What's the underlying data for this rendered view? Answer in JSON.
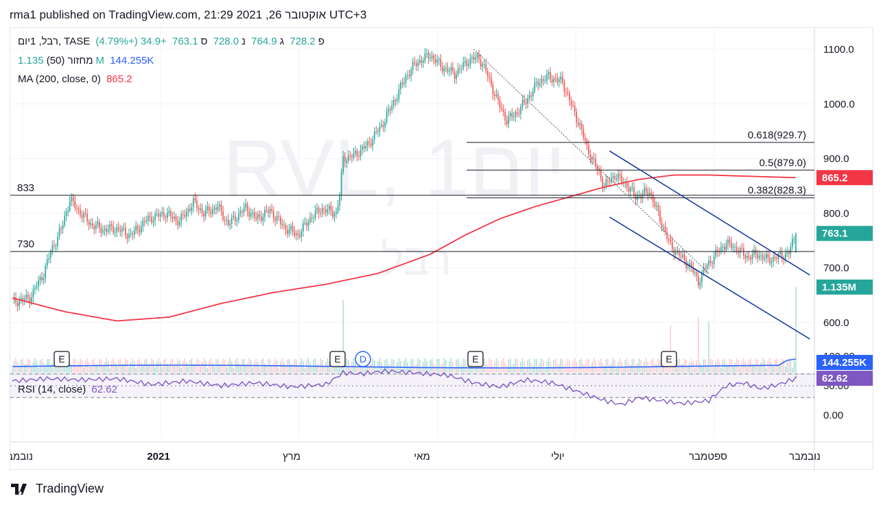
{
  "header": {
    "published": "rma1 published on TradingView.com, 21:29 2021 ,26 אוקטובר UTC+3"
  },
  "legend": {
    "symbol": "רבל, 1יום, TASE",
    "open_label": "פ",
    "open": "728.2",
    "high_label": "ג",
    "high": "764.9",
    "low_label": "נ",
    "low": "728.0",
    "close_label": "ס",
    "close": "763.1",
    "change": "+34.9 (+4.79%)",
    "volume_label": "מחזור (50)",
    "volume": "1.135M",
    "volume_ma": "144.255K",
    "ma_label": "MA (200, close, 0)",
    "ma_value": "865.2",
    "rsi_label": "RSI (14, close)",
    "rsi_value": "62.62"
  },
  "watermark": {
    "main": "RVL, 1יום",
    "sub": "רבל"
  },
  "footer": {
    "brand": "TradingView"
  },
  "colors": {
    "up": "#26a69a",
    "down": "#ef5350",
    "ma": "#f23645",
    "rsi": "#7e57c2",
    "channel": "#0c3299",
    "volume_ma": "#2962ff"
  },
  "chart_data": {
    "type": "candlestick",
    "price_axis_ticks": [
      "1100.0",
      "1000.0",
      "900.0",
      "800.0",
      "700.0",
      "600.0"
    ],
    "ylim": [
      540,
      1120
    ],
    "x_ticks": [
      "נובמבר",
      "2021",
      "מרץ",
      "מאי",
      "יולי",
      "ספטמבר",
      "נובמבר"
    ],
    "horizontal_lines": [
      {
        "label": "833",
        "value": 833
      },
      {
        "label": "730",
        "value": 730
      }
    ],
    "fibonacci": [
      {
        "label": "0.618(929.7)",
        "value": 929.7
      },
      {
        "label": "0.5(879.0)",
        "value": 879.0
      },
      {
        "label": "0.382(828.3)",
        "value": 828.3
      }
    ],
    "price_badges": [
      {
        "label": "865.2",
        "value": 865.2,
        "color": "#f23645"
      },
      {
        "label": "763.1",
        "value": 763.1,
        "color": "#26a69a"
      },
      {
        "label": "1.135M",
        "color": "#26a69a"
      },
      {
        "label": "144.255K",
        "color": "#2962ff"
      }
    ],
    "events": [
      "E",
      "E",
      "D",
      "E",
      "E"
    ],
    "last": {
      "open": 728.2,
      "high": 764.9,
      "low": 728.0,
      "close": 763.1
    },
    "close_path": [
      [
        0,
        637
      ],
      [
        10,
        645
      ],
      [
        18,
        690
      ],
      [
        22,
        730
      ],
      [
        28,
        770
      ],
      [
        33,
        825
      ],
      [
        38,
        805
      ],
      [
        45,
        780
      ],
      [
        52,
        770
      ],
      [
        60,
        772
      ],
      [
        68,
        760
      ],
      [
        78,
        790
      ],
      [
        88,
        800
      ],
      [
        96,
        785
      ],
      [
        104,
        820
      ],
      [
        110,
        800
      ],
      [
        118,
        812
      ],
      [
        124,
        780
      ],
      [
        134,
        810
      ],
      [
        140,
        790
      ],
      [
        148,
        805
      ],
      [
        156,
        775
      ],
      [
        164,
        760
      ],
      [
        172,
        795
      ],
      [
        178,
        808
      ],
      [
        186,
        800
      ],
      [
        188,
        833
      ],
      [
        190,
        900
      ],
      [
        196,
        905
      ],
      [
        204,
        925
      ],
      [
        212,
        960
      ],
      [
        220,
        1010
      ],
      [
        226,
        1050
      ],
      [
        232,
        1075
      ],
      [
        240,
        1090
      ],
      [
        246,
        1070
      ],
      [
        254,
        1055
      ],
      [
        262,
        1080
      ],
      [
        268,
        1085
      ],
      [
        272,
        1060
      ],
      [
        278,
        1010
      ],
      [
        284,
        970
      ],
      [
        290,
        985
      ],
      [
        296,
        1010
      ],
      [
        302,
        1040
      ],
      [
        308,
        1050
      ],
      [
        316,
        1040
      ],
      [
        322,
        990
      ],
      [
        326,
        960
      ],
      [
        330,
        920
      ],
      [
        336,
        880
      ],
      [
        340,
        850
      ],
      [
        346,
        870
      ],
      [
        352,
        855
      ],
      [
        358,
        830
      ],
      [
        366,
        840
      ],
      [
        372,
        790
      ],
      [
        378,
        740
      ],
      [
        384,
        720
      ],
      [
        390,
        700
      ],
      [
        394,
        675
      ],
      [
        398,
        700
      ],
      [
        404,
        725
      ],
      [
        410,
        745
      ],
      [
        416,
        735
      ],
      [
        422,
        720
      ],
      [
        428,
        725
      ],
      [
        434,
        715
      ],
      [
        440,
        720
      ],
      [
        446,
        728
      ],
      [
        450,
        763
      ]
    ],
    "ma200_path": [
      [
        0,
        645
      ],
      [
        30,
        620
      ],
      [
        60,
        603
      ],
      [
        90,
        610
      ],
      [
        120,
        635
      ],
      [
        150,
        655
      ],
      [
        180,
        670
      ],
      [
        210,
        690
      ],
      [
        240,
        725
      ],
      [
        260,
        760
      ],
      [
        280,
        790
      ],
      [
        300,
        812
      ],
      [
        320,
        830
      ],
      [
        340,
        848
      ],
      [
        360,
        862
      ],
      [
        380,
        870
      ],
      [
        400,
        870
      ],
      [
        430,
        867
      ],
      [
        450,
        865.2
      ]
    ],
    "volume_spikes": [
      {
        "bar": 190,
        "volume_rel": 0.85
      },
      {
        "bar": 378,
        "volume_rel": 0.55
      },
      {
        "bar": 394,
        "volume_rel": 0.65
      },
      {
        "bar": 400,
        "volume_rel": 0.6
      },
      {
        "bar": 450,
        "volume_rel": 1.0
      }
    ],
    "rsi": {
      "ylim": [
        0,
        100
      ],
      "ticks": [
        "100.00",
        "50.00",
        "0.00"
      ],
      "bands": [
        70,
        30
      ],
      "values": [
        [
          0,
          58
        ],
        [
          20,
          62
        ],
        [
          40,
          60
        ],
        [
          60,
          62
        ],
        [
          80,
          52
        ],
        [
          100,
          58
        ],
        [
          120,
          50
        ],
        [
          140,
          55
        ],
        [
          160,
          48
        ],
        [
          180,
          52
        ],
        [
          190,
          72
        ],
        [
          200,
          70
        ],
        [
          215,
          75
        ],
        [
          230,
          72
        ],
        [
          250,
          68
        ],
        [
          265,
          55
        ],
        [
          280,
          48
        ],
        [
          295,
          60
        ],
        [
          310,
          55
        ],
        [
          325,
          40
        ],
        [
          340,
          25
        ],
        [
          350,
          18
        ],
        [
          360,
          30
        ],
        [
          372,
          25
        ],
        [
          384,
          20
        ],
        [
          392,
          22
        ],
        [
          400,
          25
        ],
        [
          410,
          50
        ],
        [
          420,
          55
        ],
        [
          430,
          45
        ],
        [
          440,
          52
        ],
        [
          450,
          62.62
        ]
      ],
      "last": 62.62
    }
  }
}
